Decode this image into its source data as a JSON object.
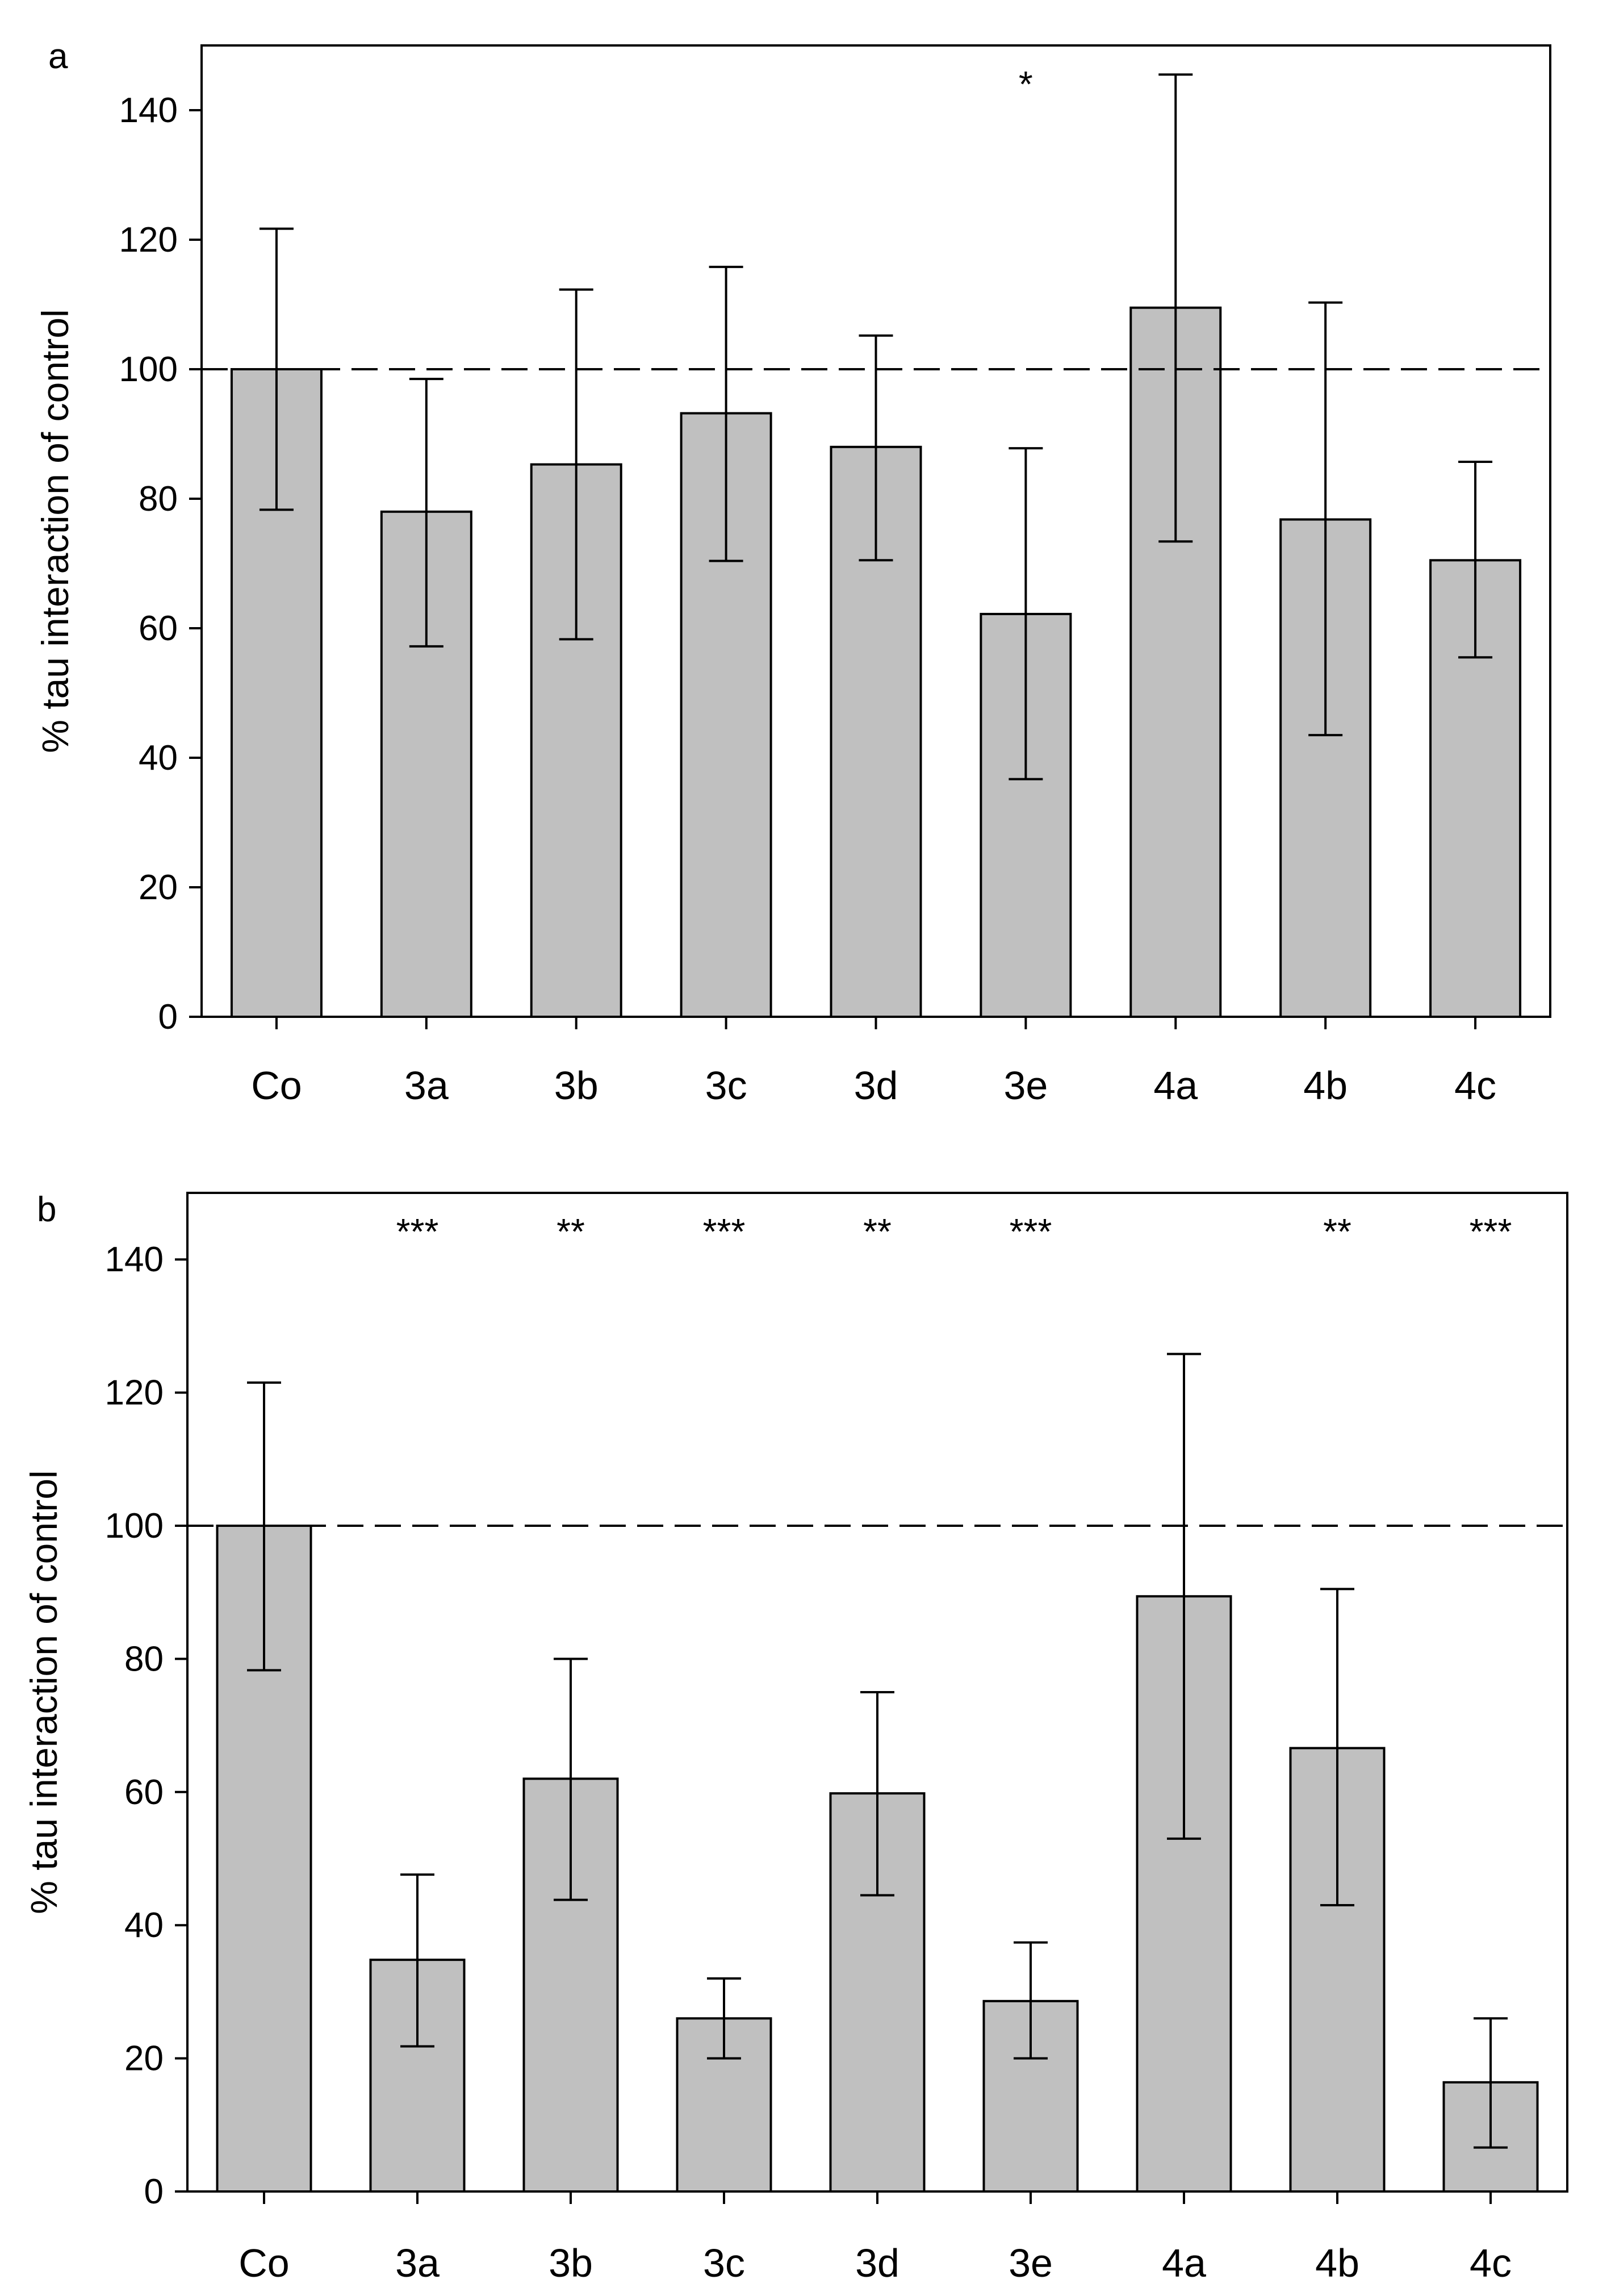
{
  "figure": {
    "colors": {
      "bar_fill": "#c0c0c0",
      "bar_stroke": "#000000",
      "axis": "#000000",
      "reference_line": "#000000"
    }
  },
  "chart_data": [
    {
      "type": "bar",
      "panel_label": "a",
      "ylabel": "% tau interaction of control",
      "xlabel": "",
      "ylim": [
        0,
        150
      ],
      "yticks": [
        0,
        20,
        40,
        60,
        80,
        100,
        120,
        140
      ],
      "ytick_labels": [
        "0",
        "20",
        "40",
        "60",
        "80",
        "100",
        "120",
        "140"
      ],
      "grid": false,
      "reference_line": {
        "y": 100,
        "style": "dashed"
      },
      "categories": [
        "Co",
        "3a",
        "3b",
        "3c",
        "3d",
        "3e",
        "4a",
        "4b",
        "4c"
      ],
      "values": [
        100,
        78,
        85.3,
        93.2,
        88,
        62.2,
        109.5,
        76.8,
        70.5
      ],
      "error_upper": [
        121.7,
        98.5,
        112.3,
        115.8,
        105.2,
        87.8,
        145.5,
        110.3,
        85.7
      ],
      "error_lower": [
        78.3,
        57.2,
        58.3,
        70.4,
        70.5,
        36.7,
        73.4,
        43.5,
        55.5
      ],
      "significance": [
        "",
        "",
        "",
        "",
        "",
        "*",
        "",
        "",
        ""
      ]
    },
    {
      "type": "bar",
      "panel_label": "b",
      "ylabel": "% tau interaction of control",
      "xlabel": "",
      "ylim": [
        0,
        150
      ],
      "yticks": [
        0,
        20,
        40,
        60,
        80,
        100,
        120,
        140
      ],
      "ytick_labels": [
        "0",
        "20",
        "40",
        "60",
        "80",
        "100",
        "120",
        "140"
      ],
      "grid": false,
      "reference_line": {
        "y": 100,
        "style": "dashed"
      },
      "categories": [
        "Co",
        "3a",
        "3b",
        "3c",
        "3d",
        "3e",
        "4a",
        "4b",
        "4c"
      ],
      "values": [
        100,
        34.8,
        62,
        26,
        59.8,
        28.6,
        89.4,
        66.6,
        16.4
      ],
      "error_upper": [
        121.5,
        47.6,
        80,
        32,
        75,
        37.4,
        125.8,
        90.5,
        26
      ],
      "error_lower": [
        78.3,
        21.8,
        43.8,
        20,
        44.5,
        20,
        53,
        43,
        6.6
      ],
      "significance": [
        "",
        "***",
        "**",
        "***",
        "**",
        "***",
        "",
        "**",
        "***"
      ]
    }
  ]
}
